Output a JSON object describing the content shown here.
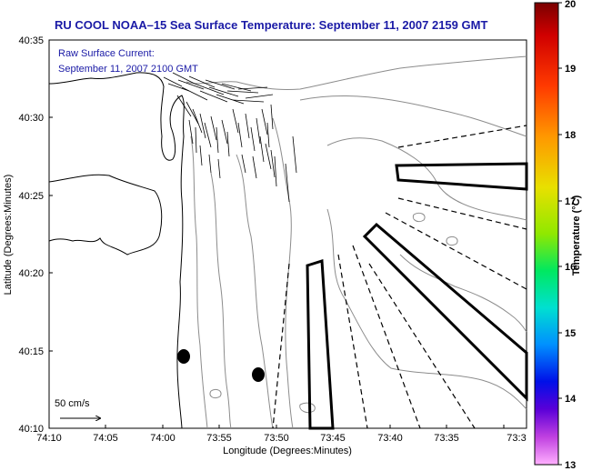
{
  "title": "RU COOL  NOAA–15  Sea Surface Temperature:  September 11, 2007 2159 GMT",
  "annotation": {
    "line1": "Raw Surface Current:",
    "line2": "September 11, 2007 2100 GMT"
  },
  "scale_label": "50 cm/s",
  "axes": {
    "xlabel": "Longitude (Degrees:Minutes)",
    "ylabel": "Latitude (Degrees:Minutes)",
    "x_ticks": [
      "74:10",
      "74:05",
      "74:00",
      "73:55",
      "73:50",
      "73:45",
      "73:40",
      "73:35",
      "73:3"
    ],
    "y_ticks": [
      "40:35",
      "40:30",
      "40:25",
      "40:20",
      "40:15",
      "40:10"
    ]
  },
  "colorbar": {
    "label": "Temperature (°C)",
    "ticks": [
      "20",
      "19",
      "18",
      "17",
      "16",
      "15",
      "14",
      "13"
    ],
    "min": 13,
    "max": 20
  },
  "colors": {
    "title": "#1a1aa6",
    "annotation": "#1a1aa6",
    "frame": "#000000",
    "contour": "#8c8c8c"
  }
}
